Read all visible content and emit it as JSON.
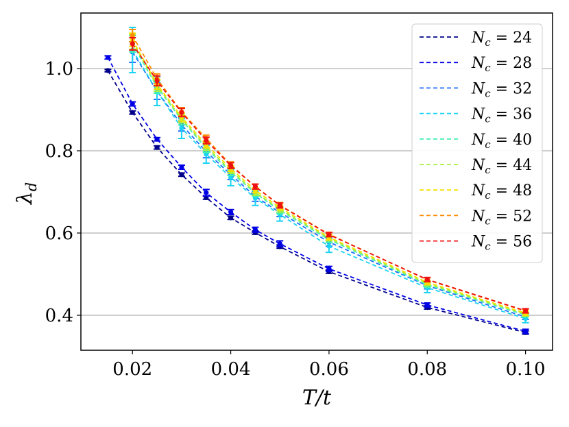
{
  "chart_data": {
    "type": "line",
    "xlabel": "T/t",
    "ylabel": "λ_d",
    "ylabel_main": "λ",
    "ylabel_sub": "d",
    "xlim": [
      0.0095,
      0.1055
    ],
    "ylim": [
      0.315,
      1.135
    ],
    "x_ticks": [
      0.02,
      0.04,
      0.06,
      0.08,
      0.1
    ],
    "x_tick_labels": [
      "0.02",
      "0.04",
      "0.06",
      "0.08",
      "0.10"
    ],
    "y_ticks": [
      0.4,
      0.6,
      0.8,
      1.0
    ],
    "y_tick_labels": [
      "0.4",
      "0.6",
      "0.8",
      "1.0"
    ],
    "grid": "horizontal",
    "legend_position": "upper-right",
    "series": [
      {
        "name": "N_c = 24",
        "legend_main": "N",
        "legend_sub": "c",
        "legend_value": " = 24",
        "color": "#00008b",
        "x": [
          0.015,
          0.02,
          0.025,
          0.03,
          0.035,
          0.04,
          0.045,
          0.05,
          0.06,
          0.08,
          0.1
        ],
        "y": [
          0.995,
          0.893,
          0.808,
          0.742,
          0.686,
          0.637,
          0.601,
          0.567,
          0.506,
          0.419,
          0.358
        ],
        "err": [
          0.003,
          0.004,
          0.004,
          0.004,
          0.004,
          0.004,
          0.004,
          0.004,
          0.004,
          0.004,
          0.004
        ]
      },
      {
        "name": "N_c = 28",
        "legend_main": "N",
        "legend_sub": "c",
        "legend_value": " = 28",
        "color": "#0000e6",
        "x": [
          0.015,
          0.02,
          0.025,
          0.03,
          0.035,
          0.04,
          0.045,
          0.05,
          0.06,
          0.08,
          0.1
        ],
        "y": [
          1.027,
          0.914,
          0.828,
          0.76,
          0.698,
          0.651,
          0.608,
          0.574,
          0.513,
          0.425,
          0.361
        ],
        "err": [
          0.004,
          0.005,
          0.004,
          0.005,
          0.008,
          0.006,
          0.006,
          0.007,
          0.006,
          0.005,
          0.005
        ]
      },
      {
        "name": "N_c = 32",
        "legend_main": "N",
        "legend_sub": "c",
        "legend_value": " = 32",
        "color": "#1f6fff",
        "x": [
          0.02,
          0.025,
          0.03,
          0.035,
          0.04,
          0.045,
          0.05,
          0.06,
          0.08,
          0.1
        ],
        "y": [
          1.04,
          0.945,
          0.863,
          0.798,
          0.742,
          0.689,
          0.65,
          0.578,
          0.472,
          0.396
        ],
        "err": [
          0.025,
          0.02,
          0.015,
          0.015,
          0.012,
          0.012,
          0.01,
          0.01,
          0.008,
          0.006
        ]
      },
      {
        "name": "N_c = 36",
        "legend_main": "N",
        "legend_sub": "c",
        "legend_value": " = 36",
        "color": "#19d3f3",
        "x": [
          0.02,
          0.025,
          0.03,
          0.035,
          0.04,
          0.045,
          0.05,
          0.06,
          0.08,
          0.1
        ],
        "y": [
          1.045,
          0.945,
          0.855,
          0.792,
          0.735,
          0.685,
          0.645,
          0.568,
          0.467,
          0.392
        ],
        "err": [
          0.055,
          0.035,
          0.025,
          0.022,
          0.02,
          0.018,
          0.016,
          0.015,
          0.012,
          0.01
        ]
      },
      {
        "name": "N_c = 40",
        "legend_main": "N",
        "legend_sub": "c",
        "legend_value": " = 40",
        "color": "#40f0b0",
        "x": [
          0.02,
          0.025,
          0.03,
          0.035,
          0.04,
          0.045,
          0.05,
          0.06,
          0.08,
          0.1
        ],
        "y": [
          1.06,
          0.955,
          0.875,
          0.806,
          0.748,
          0.697,
          0.655,
          0.584,
          0.474,
          0.401
        ],
        "err": [
          0.02,
          0.015,
          0.012,
          0.01,
          0.008,
          0.008,
          0.008,
          0.007,
          0.006,
          0.005
        ]
      },
      {
        "name": "N_c = 44",
        "legend_main": "N",
        "legend_sub": "c",
        "legend_value": " = 44",
        "color": "#a8f03a",
        "x": [
          0.02,
          0.025,
          0.03,
          0.035,
          0.04,
          0.045,
          0.05,
          0.06,
          0.08,
          0.1
        ],
        "y": [
          1.065,
          0.958,
          0.878,
          0.81,
          0.752,
          0.699,
          0.658,
          0.587,
          0.477,
          0.403
        ],
        "err": [
          0.018,
          0.013,
          0.01,
          0.009,
          0.007,
          0.007,
          0.007,
          0.006,
          0.005,
          0.005
        ]
      },
      {
        "name": "N_c = 48",
        "legend_main": "N",
        "legend_sub": "c",
        "legend_value": " = 48",
        "color": "#f5e000",
        "x": [
          0.02,
          0.025,
          0.03,
          0.035,
          0.04,
          0.045,
          0.05,
          0.06,
          0.08,
          0.1
        ],
        "y": [
          1.07,
          0.962,
          0.882,
          0.815,
          0.757,
          0.704,
          0.662,
          0.59,
          0.48,
          0.405
        ],
        "err": [
          0.016,
          0.012,
          0.01,
          0.008,
          0.007,
          0.006,
          0.006,
          0.006,
          0.005,
          0.005
        ]
      },
      {
        "name": "N_c = 52",
        "legend_main": "N",
        "legend_sub": "c",
        "legend_value": " = 52",
        "color": "#ff8c00",
        "x": [
          0.02,
          0.025,
          0.03,
          0.035,
          0.04,
          0.045,
          0.05,
          0.06,
          0.08,
          0.1
        ],
        "y": [
          1.08,
          0.975,
          0.895,
          0.83,
          0.766,
          0.713,
          0.668,
          0.597,
          0.486,
          0.41
        ],
        "err": [
          0.015,
          0.012,
          0.01,
          0.008,
          0.007,
          0.006,
          0.006,
          0.005,
          0.005,
          0.005
        ]
      },
      {
        "name": "N_c = 56",
        "legend_main": "N",
        "legend_sub": "c",
        "legend_value": " = 56",
        "color": "#ee1111",
        "x": [
          0.02,
          0.025,
          0.03,
          0.035,
          0.04,
          0.045,
          0.05,
          0.06,
          0.08,
          0.1
        ],
        "y": [
          1.06,
          0.97,
          0.893,
          0.825,
          0.764,
          0.713,
          0.667,
          0.596,
          0.487,
          0.411
        ],
        "err": [
          0.015,
          0.012,
          0.01,
          0.008,
          0.007,
          0.006,
          0.006,
          0.005,
          0.005,
          0.005
        ]
      }
    ]
  }
}
